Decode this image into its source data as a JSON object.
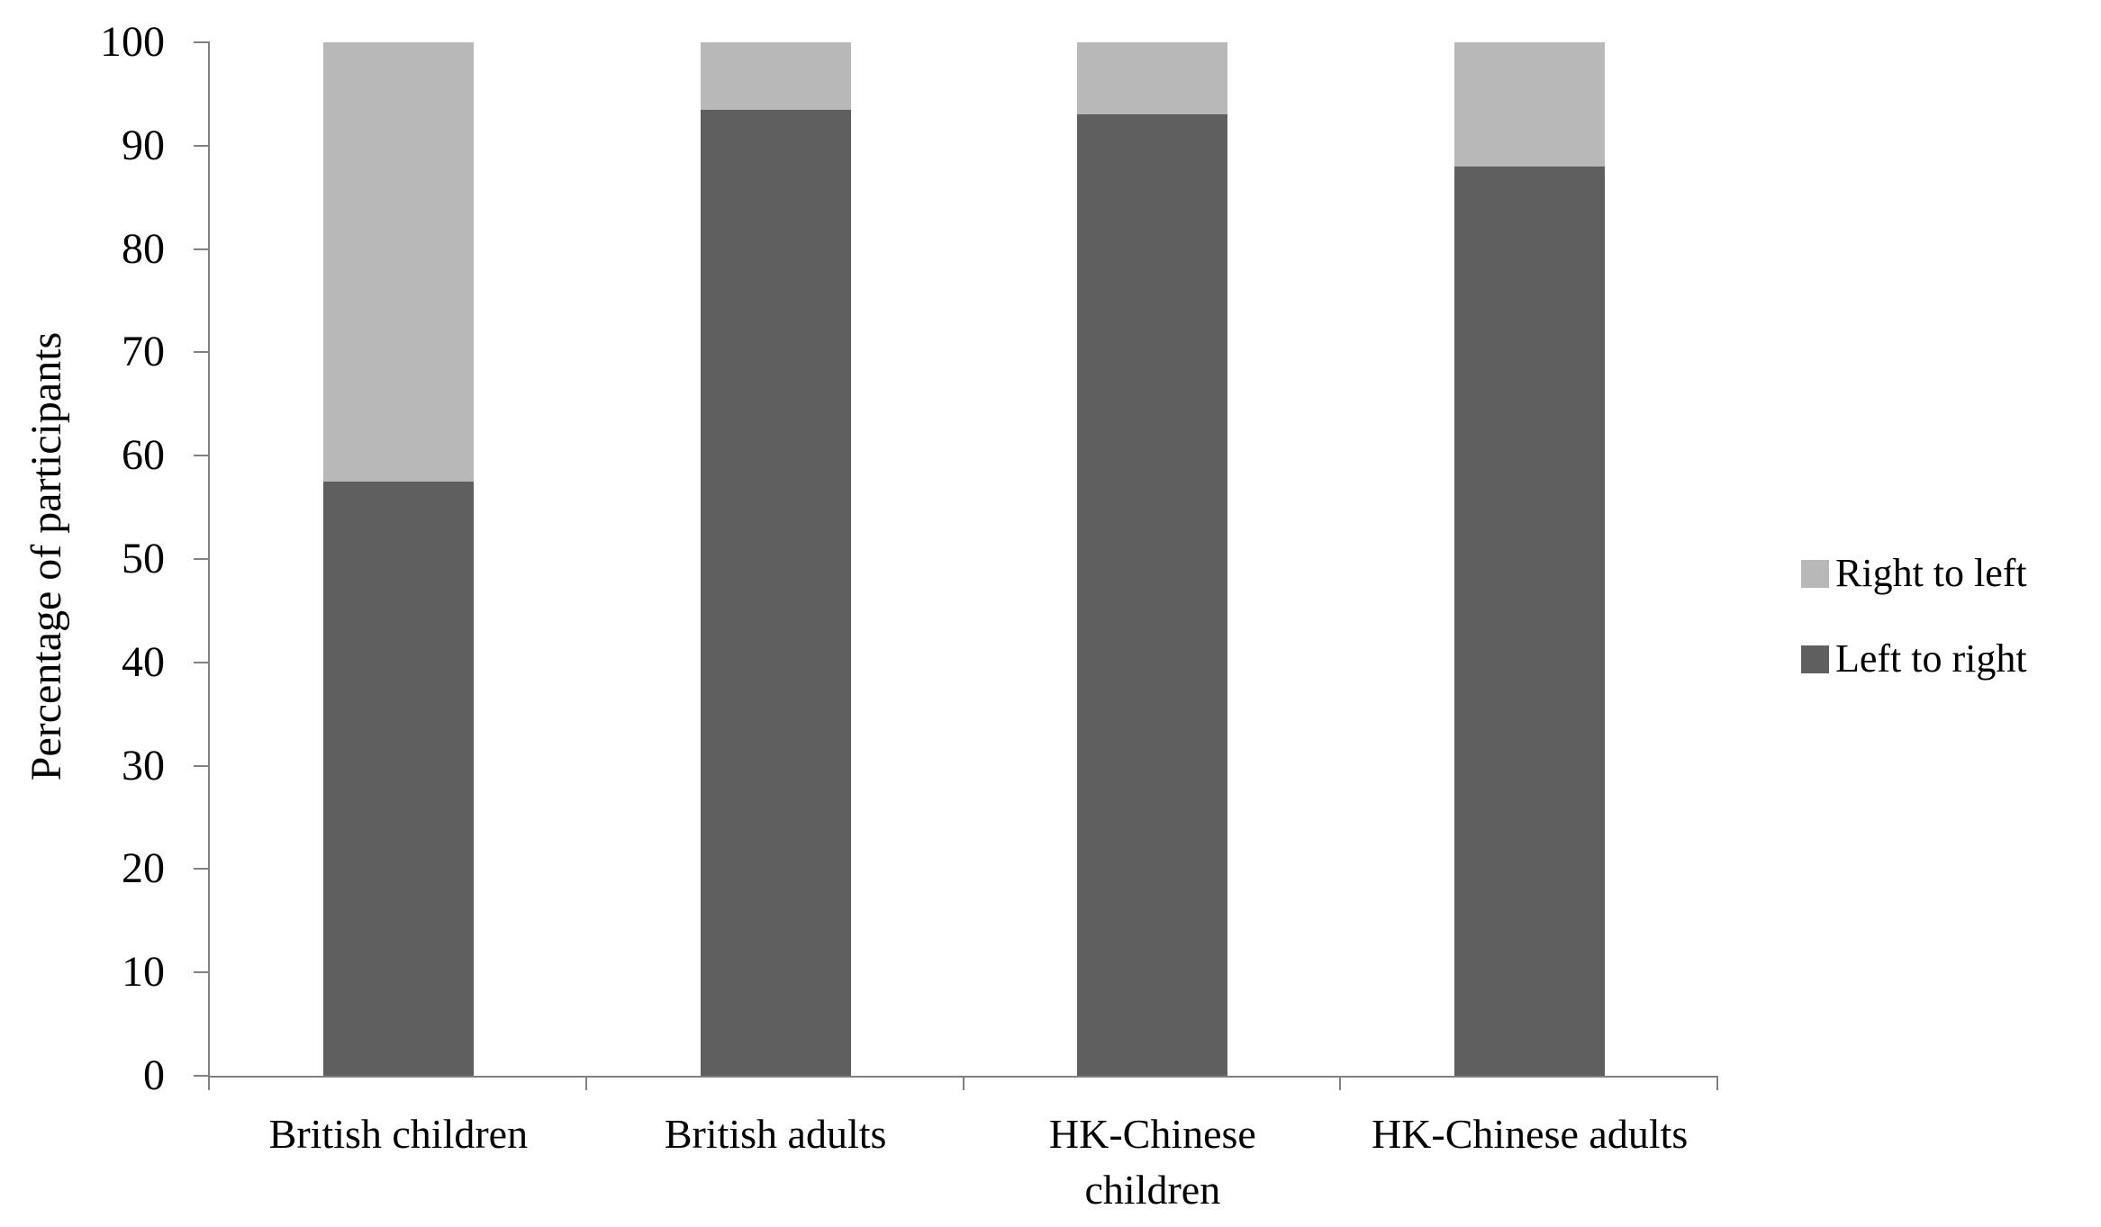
{
  "chart_data": {
    "type": "bar",
    "stacked": true,
    "title": "",
    "xlabel": "",
    "ylabel": "Percentage of participants",
    "ylim": [
      0,
      100
    ],
    "yticks": [
      0,
      10,
      20,
      30,
      40,
      50,
      60,
      70,
      80,
      90,
      100
    ],
    "grid": false,
    "legend_position": "right",
    "categories": [
      "British children",
      "British adults",
      "HK-Chinese children",
      "HK-Chinese adults"
    ],
    "series": [
      {
        "name": "Left to right",
        "color": "#5f5f5f",
        "values": [
          57.5,
          93.5,
          93,
          88
        ]
      },
      {
        "name": "Right to left",
        "color": "#b8b8b8",
        "values": [
          42.5,
          6.5,
          7,
          12
        ]
      }
    ],
    "legend": [
      "Right to left",
      "Left to right"
    ]
  },
  "colors": {
    "axis": "#808080",
    "text": "#000000",
    "background": "#ffffff"
  }
}
